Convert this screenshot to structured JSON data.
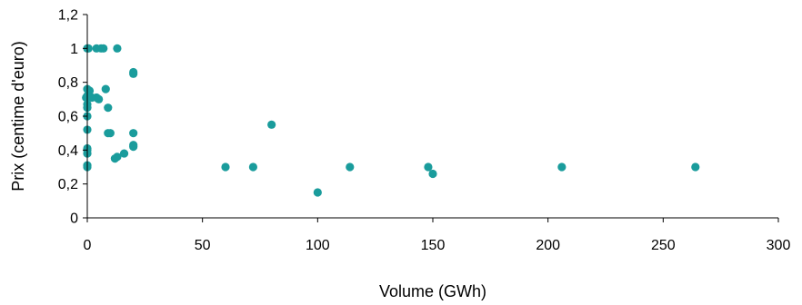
{
  "chart_data": {
    "type": "scatter",
    "title": "",
    "xlabel": "Volume (GWh)",
    "ylabel": "Prix (centime d'euro)",
    "xlim": [
      0,
      300
    ],
    "ylim": [
      0,
      1.2
    ],
    "x_ticks": [
      0,
      50,
      100,
      150,
      200,
      250,
      300
    ],
    "x_tick_labels": [
      "0",
      "50",
      "100",
      "150",
      "200",
      "250",
      "300"
    ],
    "y_ticks": [
      0,
      0.2,
      0.4,
      0.6,
      0.8,
      1,
      1.2
    ],
    "y_tick_labels": [
      "0",
      "0,2",
      "0,4",
      "0,6",
      "0,8",
      "1",
      "1,2"
    ],
    "grid": false,
    "legend": "none",
    "marker_color": "#1a9c9c",
    "points": [
      {
        "x": 0,
        "y": 1.0
      },
      {
        "x": 0.5,
        "y": 1.0
      },
      {
        "x": 4,
        "y": 1.0
      },
      {
        "x": 6,
        "y": 1.0
      },
      {
        "x": 7,
        "y": 1.0
      },
      {
        "x": 13,
        "y": 1.0
      },
      {
        "x": 20,
        "y": 0.86
      },
      {
        "x": 20,
        "y": 0.85
      },
      {
        "x": 0,
        "y": 0.76
      },
      {
        "x": 1,
        "y": 0.75
      },
      {
        "x": 8,
        "y": 0.76
      },
      {
        "x": 0,
        "y": 0.72
      },
      {
        "x": -0.5,
        "y": 0.71
      },
      {
        "x": 2,
        "y": 0.71
      },
      {
        "x": 4,
        "y": 0.71
      },
      {
        "x": 5,
        "y": 0.7
      },
      {
        "x": 0,
        "y": 0.67
      },
      {
        "x": 0,
        "y": 0.65
      },
      {
        "x": 9,
        "y": 0.65
      },
      {
        "x": 0,
        "y": 0.6
      },
      {
        "x": 0,
        "y": 0.52
      },
      {
        "x": 80,
        "y": 0.55
      },
      {
        "x": 9,
        "y": 0.5
      },
      {
        "x": 10,
        "y": 0.5
      },
      {
        "x": 20,
        "y": 0.5
      },
      {
        "x": 20,
        "y": 0.43
      },
      {
        "x": 20,
        "y": 0.42
      },
      {
        "x": 0,
        "y": 0.41
      },
      {
        "x": 0,
        "y": 0.4
      },
      {
        "x": 0,
        "y": 0.38
      },
      {
        "x": 16,
        "y": 0.38
      },
      {
        "x": 13,
        "y": 0.36
      },
      {
        "x": 12,
        "y": 0.35
      },
      {
        "x": 0,
        "y": 0.31
      },
      {
        "x": 0,
        "y": 0.3
      },
      {
        "x": 60,
        "y": 0.3
      },
      {
        "x": 72,
        "y": 0.3
      },
      {
        "x": 114,
        "y": 0.3
      },
      {
        "x": 148,
        "y": 0.3
      },
      {
        "x": 206,
        "y": 0.3
      },
      {
        "x": 264,
        "y": 0.3
      },
      {
        "x": 150,
        "y": 0.26
      },
      {
        "x": 100,
        "y": 0.15
      }
    ]
  }
}
